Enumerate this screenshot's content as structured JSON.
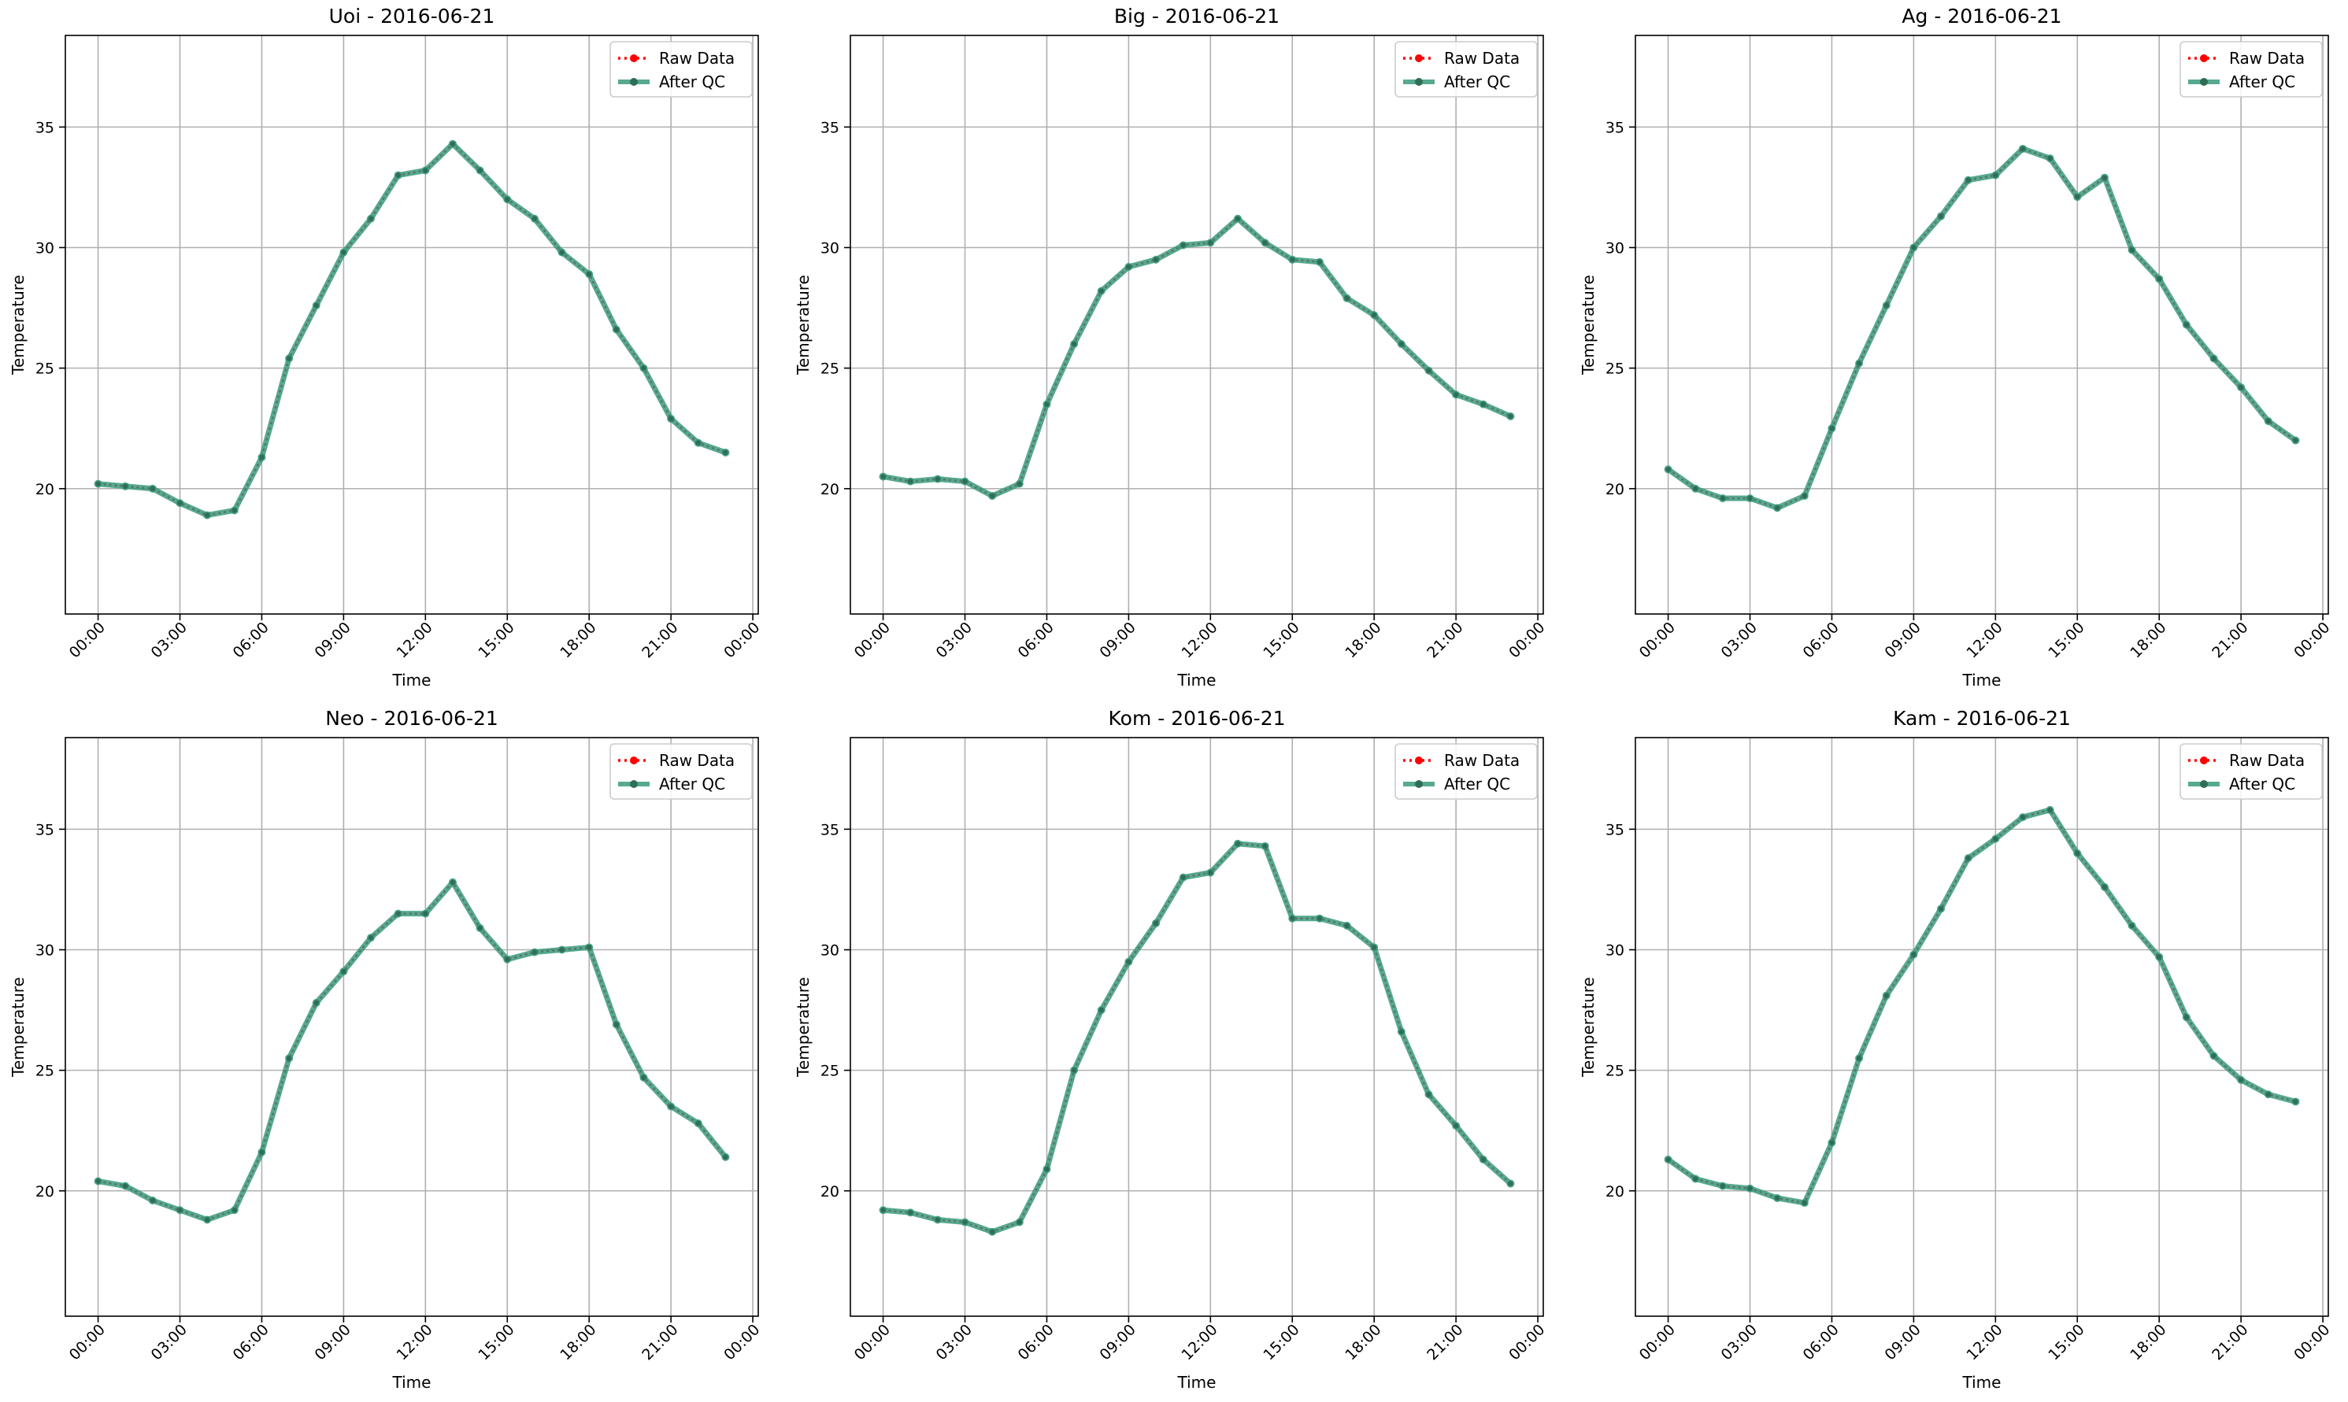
{
  "colors": {
    "raw": "#ff0000",
    "qc": "#3a9a7c",
    "grid": "#b0b0b0",
    "axes": "#000000"
  },
  "chart_data": [
    {
      "type": "line",
      "title": "Uoi - 2016-06-21",
      "xlabel": "Time",
      "ylabel": "Temperature",
      "x_ticks": [
        "00:00",
        "03:00",
        "06:00",
        "09:00",
        "12:00",
        "15:00",
        "18:00",
        "21:00",
        "00:00"
      ],
      "y_ticks": [
        "20",
        "25",
        "30",
        "35"
      ],
      "xlim_hours": [
        -1.2,
        24.2
      ],
      "ylim": [
        14.8,
        38.8
      ],
      "grid": true,
      "legend_position": "top-right",
      "x_hours": [
        0,
        1,
        2,
        3,
        4,
        5,
        6,
        7,
        8,
        9,
        10,
        11,
        12,
        13,
        14,
        15,
        16,
        17,
        18,
        19,
        20,
        21,
        22,
        23
      ],
      "series": [
        {
          "name": "Raw Data",
          "style": "dotted",
          "values": [
            20.2,
            20.1,
            20.0,
            19.4,
            18.9,
            19.1,
            21.3,
            25.4,
            27.6,
            29.8,
            31.2,
            33.0,
            33.2,
            34.3,
            33.2,
            32.0,
            31.2,
            29.8,
            28.9,
            26.6,
            25.0,
            22.9,
            21.9,
            21.5
          ]
        },
        {
          "name": "After QC",
          "style": "solid",
          "values": [
            20.2,
            20.1,
            20.0,
            19.4,
            18.9,
            19.1,
            21.3,
            25.4,
            27.6,
            29.8,
            31.2,
            33.0,
            33.2,
            34.3,
            33.2,
            32.0,
            31.2,
            29.8,
            28.9,
            26.6,
            25.0,
            22.9,
            21.9,
            21.5
          ]
        }
      ]
    },
    {
      "type": "line",
      "title": "Big - 2016-06-21",
      "xlabel": "Time",
      "ylabel": "Temperature",
      "x_ticks": [
        "00:00",
        "03:00",
        "06:00",
        "09:00",
        "12:00",
        "15:00",
        "18:00",
        "21:00",
        "00:00"
      ],
      "y_ticks": [
        "20",
        "25",
        "30",
        "35"
      ],
      "xlim_hours": [
        -1.2,
        24.2
      ],
      "ylim": [
        14.8,
        38.8
      ],
      "grid": true,
      "legend_position": "top-right",
      "x_hours": [
        0,
        1,
        2,
        3,
        4,
        5,
        6,
        7,
        8,
        9,
        10,
        11,
        12,
        13,
        14,
        15,
        16,
        17,
        18,
        19,
        20,
        21,
        22,
        23
      ],
      "series": [
        {
          "name": "Raw Data",
          "style": "dotted",
          "values": [
            20.5,
            20.3,
            20.4,
            20.3,
            19.7,
            20.2,
            23.5,
            26.0,
            28.2,
            29.2,
            29.5,
            30.1,
            30.2,
            31.2,
            30.2,
            29.5,
            29.4,
            27.9,
            27.2,
            26.0,
            24.9,
            23.9,
            23.5,
            23.0
          ]
        },
        {
          "name": "After QC",
          "style": "solid",
          "values": [
            20.5,
            20.3,
            20.4,
            20.3,
            19.7,
            20.2,
            23.5,
            26.0,
            28.2,
            29.2,
            29.5,
            30.1,
            30.2,
            31.2,
            30.2,
            29.5,
            29.4,
            27.9,
            27.2,
            26.0,
            24.9,
            23.9,
            23.5,
            23.0
          ]
        }
      ]
    },
    {
      "type": "line",
      "title": "Ag - 2016-06-21",
      "xlabel": "Time",
      "ylabel": "Temperature",
      "x_ticks": [
        "00:00",
        "03:00",
        "06:00",
        "09:00",
        "12:00",
        "15:00",
        "18:00",
        "21:00",
        "00:00"
      ],
      "y_ticks": [
        "20",
        "25",
        "30",
        "35"
      ],
      "xlim_hours": [
        -1.2,
        24.2
      ],
      "ylim": [
        14.8,
        38.8
      ],
      "grid": true,
      "legend_position": "top-right",
      "x_hours": [
        0,
        1,
        2,
        3,
        4,
        5,
        6,
        7,
        8,
        9,
        10,
        11,
        12,
        13,
        14,
        15,
        16,
        17,
        18,
        19,
        20,
        21,
        22,
        23
      ],
      "series": [
        {
          "name": "Raw Data",
          "style": "dotted",
          "values": [
            20.8,
            20.0,
            19.6,
            19.6,
            19.2,
            19.7,
            22.5,
            25.2,
            27.6,
            30.0,
            31.3,
            32.8,
            33.0,
            34.1,
            33.7,
            32.1,
            32.9,
            29.9,
            28.7,
            26.8,
            25.4,
            24.2,
            22.8,
            22.0
          ]
        },
        {
          "name": "After QC",
          "style": "solid",
          "values": [
            20.8,
            20.0,
            19.6,
            19.6,
            19.2,
            19.7,
            22.5,
            25.2,
            27.6,
            30.0,
            31.3,
            32.8,
            33.0,
            34.1,
            33.7,
            32.1,
            32.9,
            29.9,
            28.7,
            26.8,
            25.4,
            24.2,
            22.8,
            22.0
          ]
        }
      ]
    },
    {
      "type": "line",
      "title": "Neo - 2016-06-21",
      "xlabel": "Time",
      "ylabel": "Temperature",
      "x_ticks": [
        "00:00",
        "03:00",
        "06:00",
        "09:00",
        "12:00",
        "15:00",
        "18:00",
        "21:00",
        "00:00"
      ],
      "y_ticks": [
        "20",
        "25",
        "30",
        "35"
      ],
      "xlim_hours": [
        -1.2,
        24.2
      ],
      "ylim": [
        14.8,
        38.8
      ],
      "grid": true,
      "legend_position": "top-right",
      "x_hours": [
        0,
        1,
        2,
        3,
        4,
        5,
        6,
        7,
        8,
        9,
        10,
        11,
        12,
        13,
        14,
        15,
        16,
        17,
        18,
        19,
        20,
        21,
        22,
        23
      ],
      "series": [
        {
          "name": "Raw Data",
          "style": "dotted",
          "values": [
            20.4,
            20.2,
            19.6,
            19.2,
            18.8,
            19.2,
            21.6,
            25.5,
            27.8,
            29.1,
            30.5,
            31.5,
            31.5,
            32.8,
            30.9,
            29.6,
            29.9,
            30.0,
            30.1,
            26.9,
            24.7,
            23.5,
            22.8,
            21.4
          ]
        },
        {
          "name": "After QC",
          "style": "solid",
          "values": [
            20.4,
            20.2,
            19.6,
            19.2,
            18.8,
            19.2,
            21.6,
            25.5,
            27.8,
            29.1,
            30.5,
            31.5,
            31.5,
            32.8,
            30.9,
            29.6,
            29.9,
            30.0,
            30.1,
            26.9,
            24.7,
            23.5,
            22.8,
            21.4
          ]
        }
      ]
    },
    {
      "type": "line",
      "title": "Kom - 2016-06-21",
      "xlabel": "Time",
      "ylabel": "Temperature",
      "x_ticks": [
        "00:00",
        "03:00",
        "06:00",
        "09:00",
        "12:00",
        "15:00",
        "18:00",
        "21:00",
        "00:00"
      ],
      "y_ticks": [
        "20",
        "25",
        "30",
        "35"
      ],
      "xlim_hours": [
        -1.2,
        24.2
      ],
      "ylim": [
        14.8,
        38.8
      ],
      "grid": true,
      "legend_position": "top-right",
      "x_hours": [
        0,
        1,
        2,
        3,
        4,
        5,
        6,
        7,
        8,
        9,
        10,
        11,
        12,
        13,
        14,
        15,
        16,
        17,
        18,
        19,
        20,
        21,
        22,
        23
      ],
      "series": [
        {
          "name": "Raw Data",
          "style": "dotted",
          "values": [
            19.2,
            19.1,
            18.8,
            18.7,
            18.3,
            18.7,
            20.9,
            25.0,
            27.5,
            29.5,
            31.1,
            33.0,
            33.2,
            34.4,
            34.3,
            31.3,
            31.3,
            31.0,
            30.1,
            26.6,
            24.0,
            22.7,
            21.3,
            20.3
          ]
        },
        {
          "name": "After QC",
          "style": "solid",
          "values": [
            19.2,
            19.1,
            18.8,
            18.7,
            18.3,
            18.7,
            20.9,
            25.0,
            27.5,
            29.5,
            31.1,
            33.0,
            33.2,
            34.4,
            34.3,
            31.3,
            31.3,
            31.0,
            30.1,
            26.6,
            24.0,
            22.7,
            21.3,
            20.3
          ]
        }
      ]
    },
    {
      "type": "line",
      "title": "Kam - 2016-06-21",
      "xlabel": "Time",
      "ylabel": "Temperature",
      "x_ticks": [
        "00:00",
        "03:00",
        "06:00",
        "09:00",
        "12:00",
        "15:00",
        "18:00",
        "21:00",
        "00:00"
      ],
      "y_ticks": [
        "20",
        "25",
        "30",
        "35"
      ],
      "xlim_hours": [
        -1.2,
        24.2
      ],
      "ylim": [
        14.8,
        38.8
      ],
      "grid": true,
      "legend_position": "top-right",
      "x_hours": [
        0,
        1,
        2,
        3,
        4,
        5,
        6,
        7,
        8,
        9,
        10,
        11,
        12,
        13,
        14,
        15,
        16,
        17,
        18,
        19,
        20,
        21,
        22,
        23
      ],
      "series": [
        {
          "name": "Raw Data",
          "style": "dotted",
          "values": [
            21.3,
            20.5,
            20.2,
            20.1,
            19.7,
            19.5,
            22.0,
            25.5,
            28.1,
            29.8,
            31.7,
            33.8,
            34.6,
            35.5,
            35.8,
            34.0,
            32.6,
            31.0,
            29.7,
            27.2,
            25.6,
            24.6,
            24.0,
            23.7
          ]
        },
        {
          "name": "After QC",
          "style": "solid",
          "values": [
            21.3,
            20.5,
            20.2,
            20.1,
            19.7,
            19.5,
            22.0,
            25.5,
            28.1,
            29.8,
            31.7,
            33.8,
            34.6,
            35.5,
            35.8,
            34.0,
            32.6,
            31.0,
            29.7,
            27.2,
            25.6,
            24.6,
            24.0,
            23.7
          ]
        }
      ]
    }
  ]
}
